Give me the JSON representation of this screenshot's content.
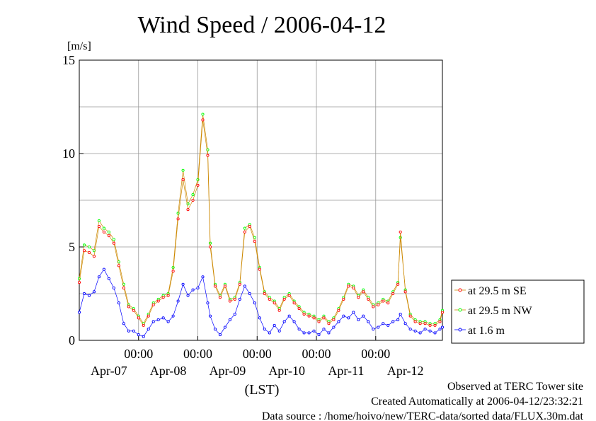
{
  "chart_data": {
    "type": "line",
    "title": "Wind Speed / 2006-04-12",
    "ylabel": "[m/s]",
    "xlabel": "(LST)",
    "ylim": [
      0,
      15
    ],
    "y_ticks": [
      "0",
      "5",
      "10",
      "15"
    ],
    "x_time_ticks": [
      "00:00",
      "00:00",
      "00:00",
      "00:00",
      "00:00"
    ],
    "x_date_labels": [
      "Apr-07",
      "Apr-08",
      "Apr-09",
      "Apr-10",
      "Apr-11",
      "Apr-12"
    ],
    "grid": true,
    "legend_position": "right",
    "series": [
      {
        "name": "at 29.5 m SE",
        "color": "#ff0000",
        "points": [
          [
            0,
            3.1
          ],
          [
            2,
            4.8
          ],
          [
            4,
            4.7
          ],
          [
            6,
            4.5
          ],
          [
            8,
            6.1
          ],
          [
            10,
            5.8
          ],
          [
            12,
            5.6
          ],
          [
            14,
            5.2
          ],
          [
            16,
            4.0
          ],
          [
            18,
            2.8
          ],
          [
            20,
            1.8
          ],
          [
            22,
            1.6
          ],
          [
            24,
            1.2
          ],
          [
            26,
            0.8
          ],
          [
            28,
            1.3
          ],
          [
            30,
            1.9
          ],
          [
            32,
            2.1
          ],
          [
            34,
            2.3
          ],
          [
            36,
            2.4
          ],
          [
            38,
            3.7
          ],
          [
            40,
            6.5
          ],
          [
            42,
            8.6
          ],
          [
            44,
            7.0
          ],
          [
            46,
            7.5
          ],
          [
            48,
            8.3
          ],
          [
            50,
            11.8
          ],
          [
            52,
            9.9
          ],
          [
            53,
            5.0
          ],
          [
            55,
            2.9
          ],
          [
            57,
            2.3
          ],
          [
            59,
            2.9
          ],
          [
            61,
            2.1
          ],
          [
            63,
            2.2
          ],
          [
            65,
            3.0
          ],
          [
            67,
            5.8
          ],
          [
            69,
            6.1
          ],
          [
            71,
            5.3
          ],
          [
            73,
            3.8
          ],
          [
            75,
            2.5
          ],
          [
            77,
            2.2
          ],
          [
            79,
            2.0
          ],
          [
            81,
            1.6
          ],
          [
            83,
            2.2
          ],
          [
            85,
            2.4
          ],
          [
            87,
            2.0
          ],
          [
            89,
            1.7
          ],
          [
            91,
            1.4
          ],
          [
            93,
            1.3
          ],
          [
            95,
            1.2
          ],
          [
            97,
            1.0
          ],
          [
            99,
            1.2
          ],
          [
            101,
            0.9
          ],
          [
            103,
            1.1
          ],
          [
            105,
            1.6
          ],
          [
            107,
            2.2
          ],
          [
            109,
            2.9
          ],
          [
            111,
            2.8
          ],
          [
            113,
            2.3
          ],
          [
            115,
            2.6
          ],
          [
            117,
            2.2
          ],
          [
            119,
            1.8
          ],
          [
            121,
            1.9
          ],
          [
            123,
            2.1
          ],
          [
            125,
            2.0
          ],
          [
            127,
            2.5
          ],
          [
            129,
            3.0
          ],
          [
            130,
            5.8
          ],
          [
            132,
            2.6
          ],
          [
            134,
            1.3
          ],
          [
            136,
            1.0
          ],
          [
            138,
            0.9
          ],
          [
            140,
            0.9
          ],
          [
            142,
            0.8
          ],
          [
            144,
            0.8
          ],
          [
            146,
            1.0
          ],
          [
            147,
            1.5
          ]
        ]
      },
      {
        "name": "at 29.5 m NW",
        "color": "#00ff00",
        "points": [
          [
            0,
            3.3
          ],
          [
            2,
            5.1
          ],
          [
            4,
            5.0
          ],
          [
            6,
            4.8
          ],
          [
            8,
            6.4
          ],
          [
            10,
            6.0
          ],
          [
            12,
            5.8
          ],
          [
            14,
            5.4
          ],
          [
            16,
            4.2
          ],
          [
            18,
            3.0
          ],
          [
            20,
            1.9
          ],
          [
            22,
            1.7
          ],
          [
            24,
            1.3
          ],
          [
            26,
            0.9
          ],
          [
            28,
            1.4
          ],
          [
            30,
            2.0
          ],
          [
            32,
            2.2
          ],
          [
            34,
            2.4
          ],
          [
            36,
            2.5
          ],
          [
            38,
            3.9
          ],
          [
            40,
            6.8
          ],
          [
            42,
            9.1
          ],
          [
            44,
            7.3
          ],
          [
            46,
            7.8
          ],
          [
            48,
            8.6
          ],
          [
            50,
            12.1
          ],
          [
            52,
            10.2
          ],
          [
            53,
            5.2
          ],
          [
            55,
            3.0
          ],
          [
            57,
            2.4
          ],
          [
            59,
            3.0
          ],
          [
            61,
            2.2
          ],
          [
            63,
            2.3
          ],
          [
            65,
            3.1
          ],
          [
            67,
            6.0
          ],
          [
            69,
            6.2
          ],
          [
            71,
            5.5
          ],
          [
            73,
            3.9
          ],
          [
            75,
            2.6
          ],
          [
            77,
            2.3
          ],
          [
            79,
            2.1
          ],
          [
            81,
            1.7
          ],
          [
            83,
            2.3
          ],
          [
            85,
            2.5
          ],
          [
            87,
            2.1
          ],
          [
            89,
            1.8
          ],
          [
            91,
            1.5
          ],
          [
            93,
            1.4
          ],
          [
            95,
            1.3
          ],
          [
            97,
            1.1
          ],
          [
            99,
            1.3
          ],
          [
            101,
            1.0
          ],
          [
            103,
            1.2
          ],
          [
            105,
            1.7
          ],
          [
            107,
            2.3
          ],
          [
            109,
            3.0
          ],
          [
            111,
            2.9
          ],
          [
            113,
            2.4
          ],
          [
            115,
            2.7
          ],
          [
            117,
            2.3
          ],
          [
            119,
            1.9
          ],
          [
            121,
            2.0
          ],
          [
            123,
            2.2
          ],
          [
            125,
            2.1
          ],
          [
            127,
            2.6
          ],
          [
            129,
            3.1
          ],
          [
            130,
            5.5
          ],
          [
            132,
            2.7
          ],
          [
            134,
            1.4
          ],
          [
            136,
            1.1
          ],
          [
            138,
            1.0
          ],
          [
            140,
            1.0
          ],
          [
            142,
            0.9
          ],
          [
            144,
            0.9
          ],
          [
            146,
            1.1
          ],
          [
            147,
            1.6
          ]
        ]
      },
      {
        "name": "at 1.6 m",
        "color": "#0000ff",
        "points": [
          [
            0,
            1.5
          ],
          [
            2,
            2.5
          ],
          [
            4,
            2.4
          ],
          [
            6,
            2.6
          ],
          [
            8,
            3.4
          ],
          [
            10,
            3.8
          ],
          [
            12,
            3.3
          ],
          [
            14,
            2.8
          ],
          [
            16,
            2.0
          ],
          [
            18,
            0.9
          ],
          [
            20,
            0.5
          ],
          [
            22,
            0.5
          ],
          [
            24,
            0.3
          ],
          [
            26,
            0.2
          ],
          [
            28,
            0.6
          ],
          [
            30,
            1.0
          ],
          [
            32,
            1.1
          ],
          [
            34,
            1.2
          ],
          [
            36,
            1.0
          ],
          [
            38,
            1.3
          ],
          [
            40,
            2.1
          ],
          [
            42,
            3.0
          ],
          [
            44,
            2.4
          ],
          [
            46,
            2.7
          ],
          [
            48,
            2.8
          ],
          [
            50,
            3.4
          ],
          [
            52,
            2.0
          ],
          [
            53,
            1.3
          ],
          [
            55,
            0.6
          ],
          [
            57,
            0.3
          ],
          [
            59,
            0.7
          ],
          [
            61,
            1.1
          ],
          [
            63,
            1.4
          ],
          [
            65,
            2.2
          ],
          [
            67,
            2.9
          ],
          [
            69,
            2.5
          ],
          [
            71,
            2.0
          ],
          [
            73,
            1.2
          ],
          [
            75,
            0.6
          ],
          [
            77,
            0.4
          ],
          [
            79,
            0.8
          ],
          [
            81,
            0.5
          ],
          [
            83,
            1.0
          ],
          [
            85,
            1.3
          ],
          [
            87,
            1.0
          ],
          [
            89,
            0.6
          ],
          [
            91,
            0.4
          ],
          [
            93,
            0.4
          ],
          [
            95,
            0.5
          ],
          [
            97,
            0.3
          ],
          [
            99,
            0.6
          ],
          [
            101,
            0.4
          ],
          [
            103,
            0.7
          ],
          [
            105,
            1.0
          ],
          [
            107,
            1.3
          ],
          [
            109,
            1.2
          ],
          [
            111,
            1.5
          ],
          [
            113,
            1.1
          ],
          [
            115,
            1.3
          ],
          [
            117,
            1.0
          ],
          [
            119,
            0.6
          ],
          [
            121,
            0.7
          ],
          [
            123,
            0.9
          ],
          [
            125,
            0.8
          ],
          [
            127,
            1.0
          ],
          [
            129,
            1.1
          ],
          [
            130,
            1.4
          ],
          [
            132,
            0.9
          ],
          [
            134,
            0.6
          ],
          [
            136,
            0.5
          ],
          [
            138,
            0.4
          ],
          [
            140,
            0.6
          ],
          [
            142,
            0.5
          ],
          [
            144,
            0.4
          ],
          [
            146,
            0.6
          ],
          [
            147,
            0.7
          ]
        ]
      }
    ]
  },
  "footer": {
    "site": "Observed at TERC Tower site",
    "created": "Created Automatically at 2006-04-12/23:32:21",
    "source": "Data source : /home/hoivo/new/TERC-data/sorted  data/FLUX.30m.dat"
  }
}
